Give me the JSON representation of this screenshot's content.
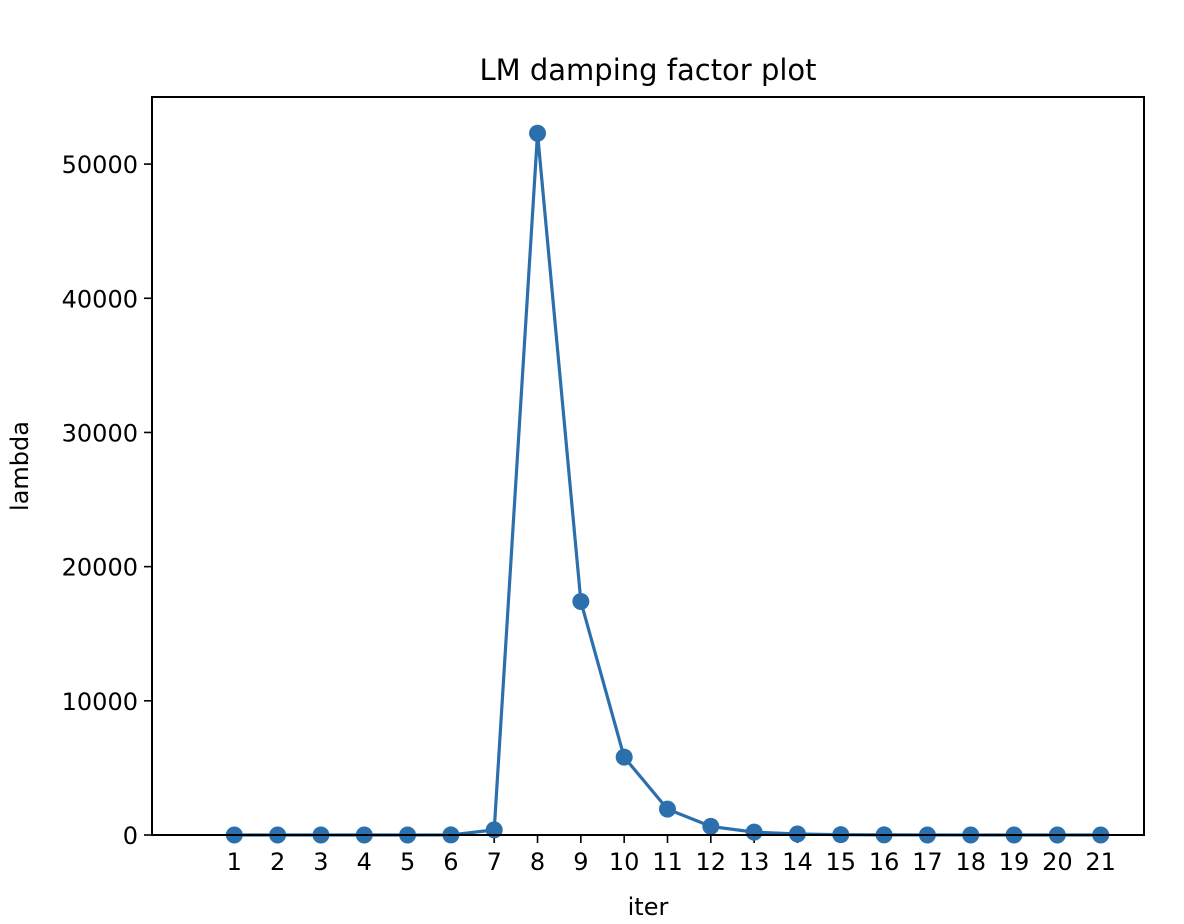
{
  "chart_data": {
    "type": "line",
    "title": "LM damping factor plot",
    "xlabel": "iter",
    "ylabel": "lambda",
    "x": [
      1,
      2,
      3,
      4,
      5,
      6,
      7,
      8,
      9,
      10,
      11,
      12,
      13,
      14,
      15,
      16,
      17,
      18,
      19,
      20,
      21
    ],
    "xticks": [
      "1",
      "2",
      "3",
      "4",
      "5",
      "6",
      "7",
      "8",
      "9",
      "10",
      "11",
      "12",
      "13",
      "14",
      "15",
      "16",
      "17",
      "18",
      "19",
      "20",
      "21"
    ],
    "yticks": [
      "0",
      "10000",
      "20000",
      "30000",
      "40000",
      "50000"
    ],
    "ytick_values": [
      0,
      10000,
      20000,
      30000,
      40000,
      50000
    ],
    "series": [
      {
        "values": [
          0.1,
          0.03,
          0.01,
          0.003,
          0.001,
          5,
          380,
          52300,
          17400,
          5800,
          1930,
          640,
          215,
          72,
          24,
          8,
          2.7,
          0.9,
          0.3,
          0.1,
          0.03
        ],
        "color": "#2c6fad",
        "marker": "circle"
      }
    ],
    "xlim": [
      -0.9,
      22.0
    ],
    "ylim": [
      0,
      55000
    ],
    "grid": false,
    "legend": "none"
  }
}
